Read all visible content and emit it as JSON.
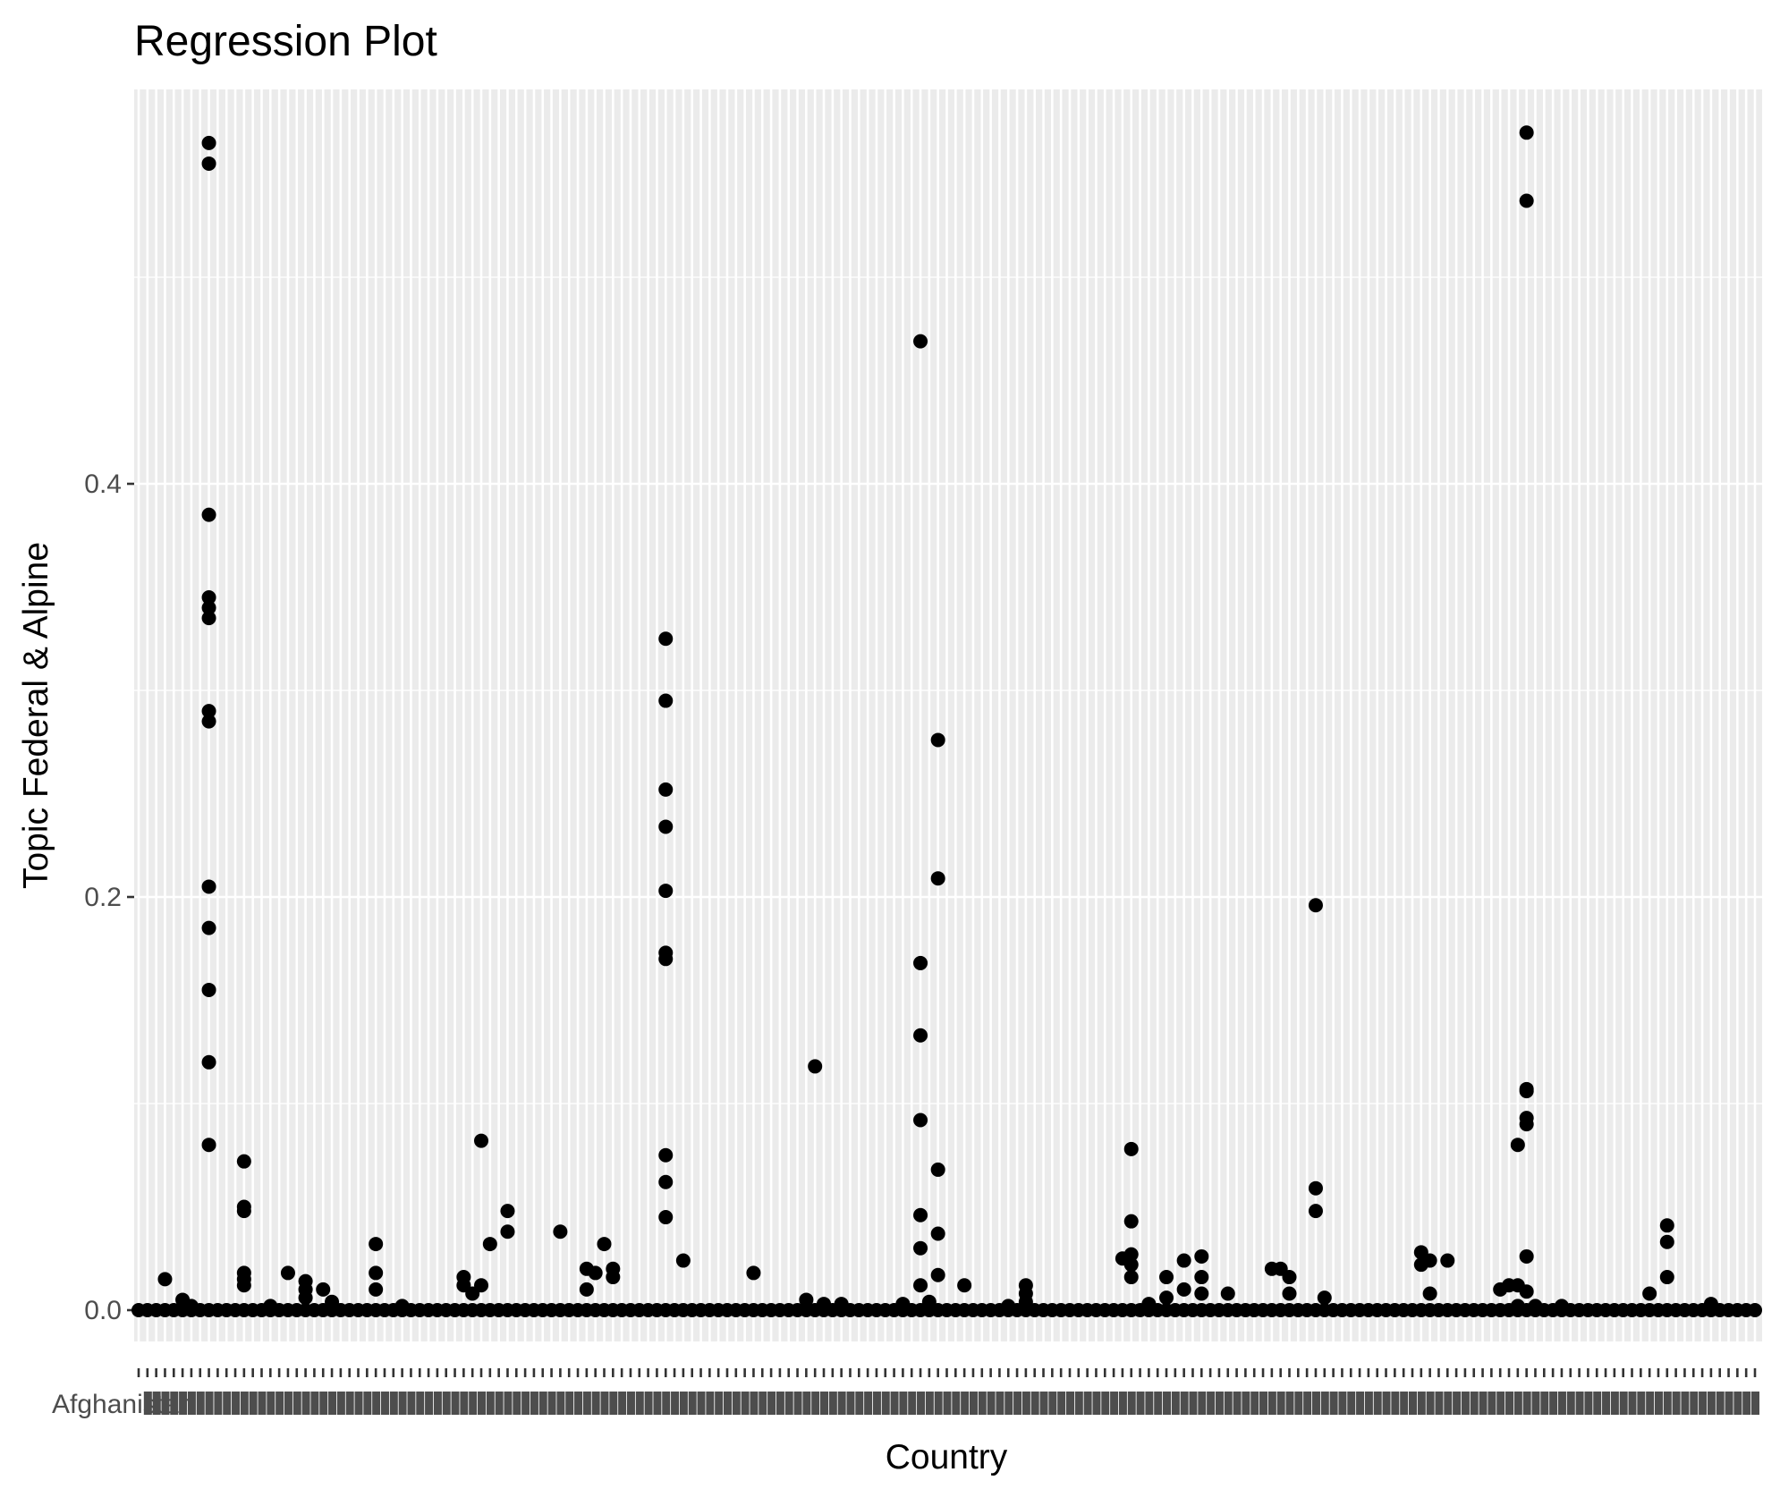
{
  "chart_data": {
    "type": "scatter",
    "title": "Regression Plot",
    "xlabel": "Country",
    "ylabel": "Topic Federal & Alpine",
    "y_ticks": [
      0.0,
      0.2,
      0.4
    ],
    "y_tick_labels": [
      "0.0",
      "0.2",
      "0.4"
    ],
    "ylim": [
      -0.02,
      0.59
    ],
    "grid": true,
    "x_category_count": 185,
    "first_category_label": "Afghanistan",
    "series": [
      {
        "values": [
          [
            8,
            0.565
          ],
          [
            8,
            0.555
          ],
          [
            8,
            0.385
          ],
          [
            8,
            0.345
          ],
          [
            8,
            0.34
          ],
          [
            8,
            0.335
          ],
          [
            8,
            0.29
          ],
          [
            8,
            0.285
          ],
          [
            8,
            0.205
          ],
          [
            8,
            0.185
          ],
          [
            8,
            0.155
          ],
          [
            8,
            0.12
          ],
          [
            8,
            0.08
          ],
          [
            12,
            0.072
          ],
          [
            12,
            0.05
          ],
          [
            12,
            0.048
          ],
          [
            12,
            0.018
          ],
          [
            12,
            0.015
          ],
          [
            12,
            0.012
          ],
          [
            3,
            0.015
          ],
          [
            5,
            0.005
          ],
          [
            6,
            0.002
          ],
          [
            15,
            0.002
          ],
          [
            17,
            0.018
          ],
          [
            19,
            0.014
          ],
          [
            19,
            0.01
          ],
          [
            19,
            0.006
          ],
          [
            21,
            0.01
          ],
          [
            22,
            0.004
          ],
          [
            27,
            0.032
          ],
          [
            27,
            0.018
          ],
          [
            27,
            0.01
          ],
          [
            30,
            0.002
          ],
          [
            37,
            0.016
          ],
          [
            37,
            0.012
          ],
          [
            38,
            0.008
          ],
          [
            39,
            0.082
          ],
          [
            39,
            0.012
          ],
          [
            40,
            0.032
          ],
          [
            42,
            0.048
          ],
          [
            42,
            0.038
          ],
          [
            48,
            0.038
          ],
          [
            51,
            0.02
          ],
          [
            51,
            0.01
          ],
          [
            52,
            0.018
          ],
          [
            53,
            0.032
          ],
          [
            54,
            0.02
          ],
          [
            54,
            0.016
          ],
          [
            60,
            0.325
          ],
          [
            60,
            0.295
          ],
          [
            60,
            0.252
          ],
          [
            60,
            0.234
          ],
          [
            60,
            0.203
          ],
          [
            60,
            0.173
          ],
          [
            60,
            0.17
          ],
          [
            60,
            0.075
          ],
          [
            60,
            0.062
          ],
          [
            60,
            0.045
          ],
          [
            62,
            0.024
          ],
          [
            70,
            0.018
          ],
          [
            77,
            0.118
          ],
          [
            76,
            0.005
          ],
          [
            78,
            0.003
          ],
          [
            80,
            0.003
          ],
          [
            87,
            0.003
          ],
          [
            89,
            0.469
          ],
          [
            89,
            0.168
          ],
          [
            89,
            0.133
          ],
          [
            89,
            0.092
          ],
          [
            89,
            0.046
          ],
          [
            89,
            0.03
          ],
          [
            89,
            0.012
          ],
          [
            90,
            0.004
          ],
          [
            91,
            0.276
          ],
          [
            91,
            0.209
          ],
          [
            91,
            0.068
          ],
          [
            91,
            0.037
          ],
          [
            91,
            0.017
          ],
          [
            94,
            0.012
          ],
          [
            99,
            0.002
          ],
          [
            101,
            0.012
          ],
          [
            101,
            0.008
          ],
          [
            101,
            0.004
          ],
          [
            112,
            0.025
          ],
          [
            113,
            0.078
          ],
          [
            113,
            0.043
          ],
          [
            113,
            0.027
          ],
          [
            113,
            0.022
          ],
          [
            113,
            0.016
          ],
          [
            115,
            0.003
          ],
          [
            117,
            0.016
          ],
          [
            117,
            0.006
          ],
          [
            119,
            0.024
          ],
          [
            119,
            0.01
          ],
          [
            121,
            0.026
          ],
          [
            121,
            0.016
          ],
          [
            121,
            0.008
          ],
          [
            124,
            0.008
          ],
          [
            129,
            0.02
          ],
          [
            130,
            0.02
          ],
          [
            131,
            0.016
          ],
          [
            131,
            0.008
          ],
          [
            134,
            0.196
          ],
          [
            134,
            0.059
          ],
          [
            134,
            0.048
          ],
          [
            135,
            0.006
          ],
          [
            146,
            0.028
          ],
          [
            146,
            0.022
          ],
          [
            147,
            0.024
          ],
          [
            147,
            0.008
          ],
          [
            149,
            0.024
          ],
          [
            155,
            0.01
          ],
          [
            156,
            0.012
          ],
          [
            157,
            0.08
          ],
          [
            157,
            0.012
          ],
          [
            157,
            0.002
          ],
          [
            158,
            0.57
          ],
          [
            158,
            0.537
          ],
          [
            158,
            0.107
          ],
          [
            158,
            0.106
          ],
          [
            158,
            0.093
          ],
          [
            158,
            0.09
          ],
          [
            158,
            0.026
          ],
          [
            158,
            0.009
          ],
          [
            159,
            0.002
          ],
          [
            162,
            0.002
          ],
          [
            172,
            0.008
          ],
          [
            174,
            0.041
          ],
          [
            174,
            0.033
          ],
          [
            174,
            0.016
          ],
          [
            179,
            0.003
          ]
        ]
      }
    ]
  }
}
